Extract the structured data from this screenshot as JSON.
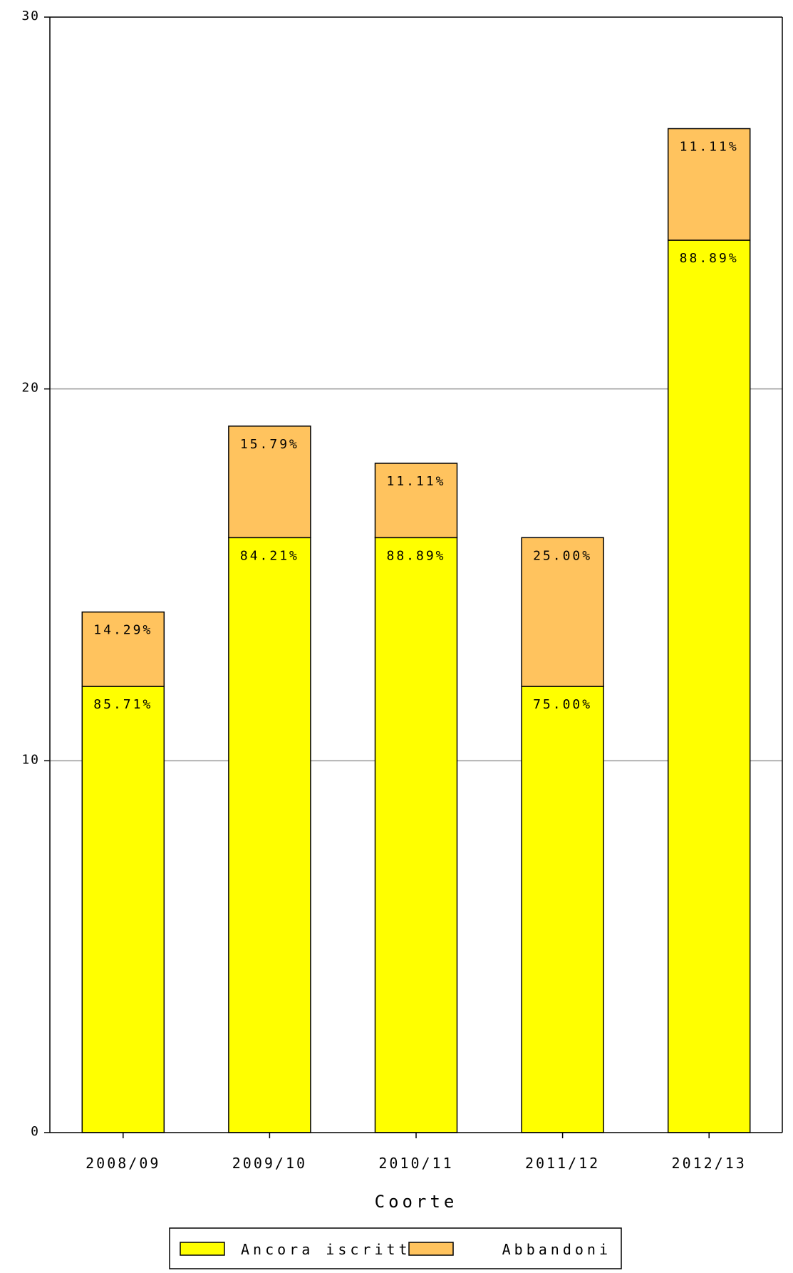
{
  "chart_data": {
    "type": "bar",
    "stacked": true,
    "categories": [
      "2008/09",
      "2009/10",
      "2010/11",
      "2011/12",
      "2012/13"
    ],
    "series": [
      {
        "name": "Ancora iscritti",
        "values": [
          12,
          16,
          16,
          12,
          24
        ],
        "labels": [
          "85.71%",
          "84.21%",
          "88.89%",
          "75.00%",
          "88.89%"
        ]
      },
      {
        "name": "Abbandoni",
        "values": [
          2,
          3,
          2,
          4,
          3
        ],
        "labels": [
          "14.29%",
          "15.79%",
          "11.11%",
          "25.00%",
          "11.11%"
        ]
      }
    ],
    "title": "",
    "xlabel": "Coorte",
    "ylabel": "",
    "ylim": [
      0,
      30
    ],
    "yticks": [
      "0",
      "10",
      "20",
      "30"
    ],
    "grid": true,
    "legend_position": "bottom",
    "colors": {
      "Ancora iscritti": "#ffff00",
      "Abbandoni": "#ffc35e",
      "gridline": "#999999",
      "outline": "#000000"
    }
  }
}
